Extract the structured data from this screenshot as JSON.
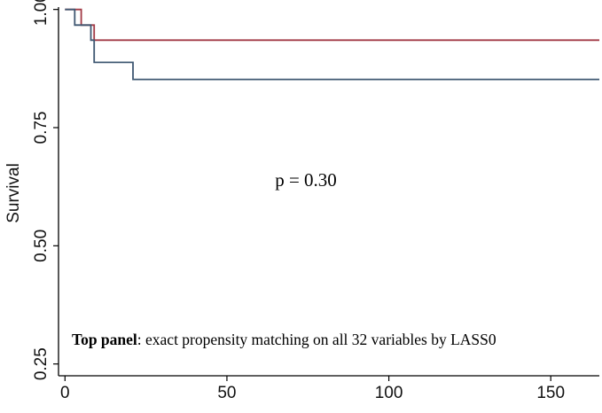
{
  "chart_data": {
    "type": "line",
    "ylabel": "Survival",
    "xlabel": "",
    "xlim": [
      -2,
      165
    ],
    "ylim": [
      0.225,
      1.005
    ],
    "xticks": [
      "0",
      "50",
      "100",
      "150"
    ],
    "yticks": [
      "0.25",
      "0.50",
      "0.75",
      "1.00"
    ],
    "grid": false,
    "series": [
      {
        "color": "#a23a46",
        "step": true,
        "x": [
          0,
          5,
          8,
          9,
          165
        ],
        "y": [
          1.0,
          0.967,
          0.967,
          0.935,
          0.935
        ]
      },
      {
        "color": "#3f5872",
        "step": true,
        "x": [
          0,
          3,
          8,
          9,
          21,
          165
        ],
        "y": [
          1.0,
          0.967,
          0.935,
          0.888,
          0.852,
          0.852
        ]
      }
    ],
    "annotations": [
      {
        "text": "p = 0.30"
      }
    ],
    "caption": {
      "bold": "Top panel",
      "rest": ": exact propensity matching on all 32 variables by LASS0"
    }
  }
}
